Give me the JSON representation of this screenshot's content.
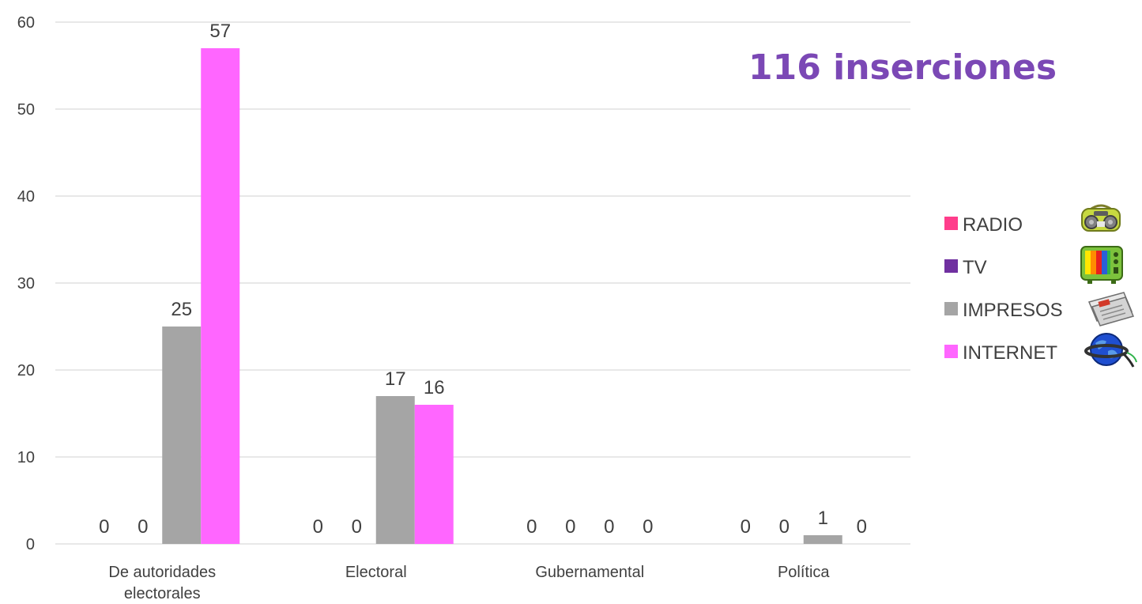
{
  "headline": "116 inserciones",
  "colors": {
    "headline": "#7b48b5",
    "gridline": "#d9d9d9",
    "axis_text": "#404040"
  },
  "chart_data": {
    "type": "bar",
    "title": "",
    "xlabel": "",
    "ylabel": "",
    "ylim": [
      0,
      60
    ],
    "yticks": [
      0,
      10,
      20,
      30,
      40,
      50,
      60
    ],
    "grid": true,
    "legend_position": "right",
    "categories": [
      [
        "De autoridades",
        "electorales"
      ],
      [
        "Electoral"
      ],
      [
        "Gubernamental"
      ],
      [
        "Política"
      ]
    ],
    "series": [
      {
        "name": "RADIO",
        "color": "#ff3d8b",
        "icon": "radio-icon",
        "values": [
          0,
          0,
          0,
          0
        ]
      },
      {
        "name": "TV",
        "color": "#7030a0",
        "icon": "tv-icon",
        "values": [
          0,
          0,
          0,
          0
        ]
      },
      {
        "name": "IMPRESOS",
        "color": "#a5a5a5",
        "icon": "newspaper-icon",
        "values": [
          25,
          17,
          0,
          1
        ]
      },
      {
        "name": "INTERNET",
        "color": "#ff66ff",
        "icon": "globe-icon",
        "values": [
          57,
          16,
          0,
          0
        ]
      }
    ]
  }
}
